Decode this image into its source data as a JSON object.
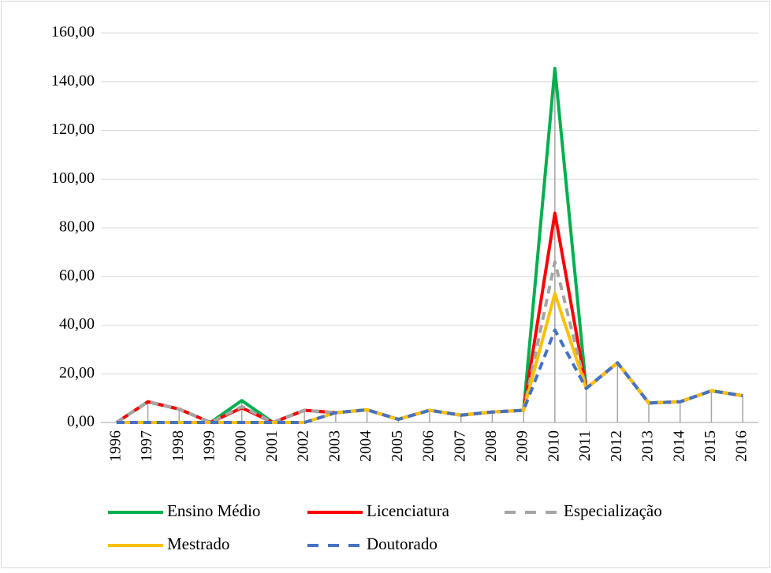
{
  "chart_data": {
    "type": "line",
    "categories": [
      "1996",
      "1997",
      "1998",
      "1999",
      "2000",
      "2001",
      "2002",
      "2003",
      "2004",
      "2005",
      "2006",
      "2007",
      "2008",
      "2009",
      "2010",
      "2011",
      "2012",
      "2013",
      "2014",
      "2015",
      "2016"
    ],
    "series": [
      {
        "name": "Ensino Médio",
        "color": "#00b050",
        "dashed": false,
        "values": [
          0,
          8.5,
          5.5,
          0,
          9,
          0,
          5,
          4,
          5.2,
          1.3,
          5,
          3,
          4.3,
          5,
          145.5,
          14,
          24.5,
          8,
          8.5,
          13,
          11
        ]
      },
      {
        "name": "Licenciatura",
        "color": "#ff0000",
        "dashed": false,
        "values": [
          0,
          8.5,
          5.5,
          0,
          6,
          0,
          5,
          4,
          5.2,
          1.3,
          5,
          3,
          4.3,
          5,
          86,
          14,
          24.5,
          8,
          8.5,
          13,
          11
        ]
      },
      {
        "name": "Especialização",
        "color": "#a5a5a5",
        "dashed": true,
        "values": [
          0,
          8.5,
          5.5,
          0,
          6.5,
          0,
          5,
          4,
          5.2,
          1.3,
          5,
          3,
          4.3,
          5,
          66,
          14,
          24.5,
          8,
          8.5,
          13,
          11
        ]
      },
      {
        "name": "Mestrado",
        "color": "#ffc000",
        "dashed": false,
        "values": [
          0,
          0,
          0,
          0,
          0,
          0,
          0,
          4,
          5.2,
          1.3,
          5,
          3,
          4.3,
          5,
          53,
          14,
          24.5,
          8,
          8.5,
          13,
          11
        ]
      },
      {
        "name": "Doutorado",
        "color": "#4472c4",
        "dashed": true,
        "values": [
          0,
          0,
          0,
          0,
          0,
          0,
          0,
          4,
          5.2,
          1.3,
          5,
          3,
          4.3,
          5,
          38,
          14,
          24.5,
          8,
          8.5,
          13,
          11
        ]
      }
    ],
    "ylim": [
      0,
      160
    ],
    "yticks": [
      {
        "value": 0,
        "label": "0,00"
      },
      {
        "value": 20,
        "label": "20,00"
      },
      {
        "value": 40,
        "label": "40,00"
      },
      {
        "value": 60,
        "label": "60,00"
      },
      {
        "value": 80,
        "label": "80,00"
      },
      {
        "value": 100,
        "label": "100,00"
      },
      {
        "value": 120,
        "label": "120,00"
      },
      {
        "value": 140,
        "label": "140,00"
      },
      {
        "value": 160,
        "label": "160,00"
      }
    ],
    "grid": true,
    "drop_lines": true,
    "legend": "bottom"
  }
}
